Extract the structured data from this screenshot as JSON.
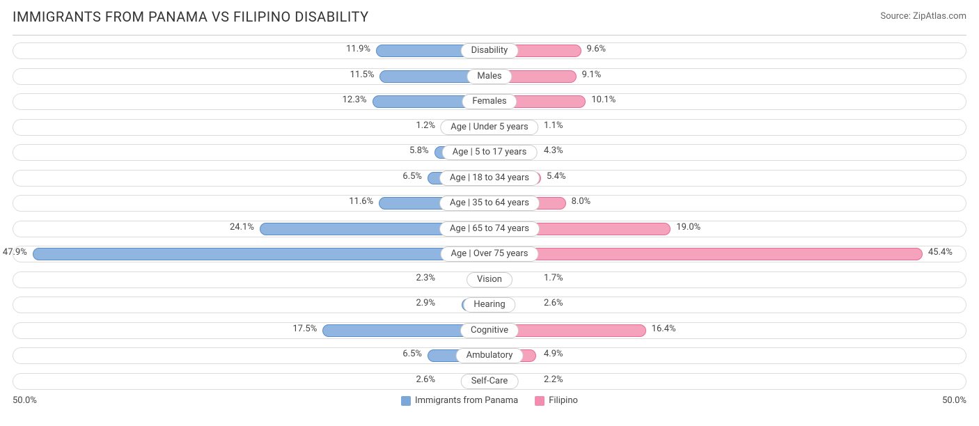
{
  "title": "IMMIGRANTS FROM PANAMA VS FILIPINO DISABILITY",
  "source_label": "Source: ",
  "source_name": "ZipAtlas.com",
  "axis_max_left_label": "50.0%",
  "axis_max_right_label": "50.0%",
  "axis_max": 50.0,
  "legend": {
    "left": {
      "label": "Immigrants from Panama",
      "color": "#7ba7d9"
    },
    "right": {
      "label": "Filipino",
      "color": "#f18eb0"
    }
  },
  "colors": {
    "left_bar_fill": "#8fb5e0",
    "left_bar_border": "#5a8cc9",
    "right_bar_fill": "#f5a3bd",
    "right_bar_border": "#e76a96",
    "track_border": "#dddddd",
    "text": "#444444",
    "title_text": "#333333",
    "divider": "#cccccc"
  },
  "rows": [
    {
      "category": "Disability",
      "left_val": 11.9,
      "left_label": "11.9%",
      "right_val": 9.6,
      "right_label": "9.6%"
    },
    {
      "category": "Males",
      "left_val": 11.5,
      "left_label": "11.5%",
      "right_val": 9.1,
      "right_label": "9.1%"
    },
    {
      "category": "Females",
      "left_val": 12.3,
      "left_label": "12.3%",
      "right_val": 10.1,
      "right_label": "10.1%"
    },
    {
      "category": "Age | Under 5 years",
      "left_val": 1.2,
      "left_label": "1.2%",
      "right_val": 1.1,
      "right_label": "1.1%"
    },
    {
      "category": "Age | 5 to 17 years",
      "left_val": 5.8,
      "left_label": "5.8%",
      "right_val": 4.3,
      "right_label": "4.3%"
    },
    {
      "category": "Age | 18 to 34 years",
      "left_val": 6.5,
      "left_label": "6.5%",
      "right_val": 5.4,
      "right_label": "5.4%"
    },
    {
      "category": "Age | 35 to 64 years",
      "left_val": 11.6,
      "left_label": "11.6%",
      "right_val": 8.0,
      "right_label": "8.0%"
    },
    {
      "category": "Age | 65 to 74 years",
      "left_val": 24.1,
      "left_label": "24.1%",
      "right_val": 19.0,
      "right_label": "19.0%"
    },
    {
      "category": "Age | Over 75 years",
      "left_val": 47.9,
      "left_label": "47.9%",
      "right_val": 45.4,
      "right_label": "45.4%"
    },
    {
      "category": "Vision",
      "left_val": 2.3,
      "left_label": "2.3%",
      "right_val": 1.7,
      "right_label": "1.7%"
    },
    {
      "category": "Hearing",
      "left_val": 2.9,
      "left_label": "2.9%",
      "right_val": 2.6,
      "right_label": "2.6%"
    },
    {
      "category": "Cognitive",
      "left_val": 17.5,
      "left_label": "17.5%",
      "right_val": 16.4,
      "right_label": "16.4%"
    },
    {
      "category": "Ambulatory",
      "left_val": 6.5,
      "left_label": "6.5%",
      "right_val": 4.9,
      "right_label": "4.9%"
    },
    {
      "category": "Self-Care",
      "left_val": 2.6,
      "left_label": "2.6%",
      "right_val": 2.2,
      "right_label": "2.2%"
    }
  ]
}
